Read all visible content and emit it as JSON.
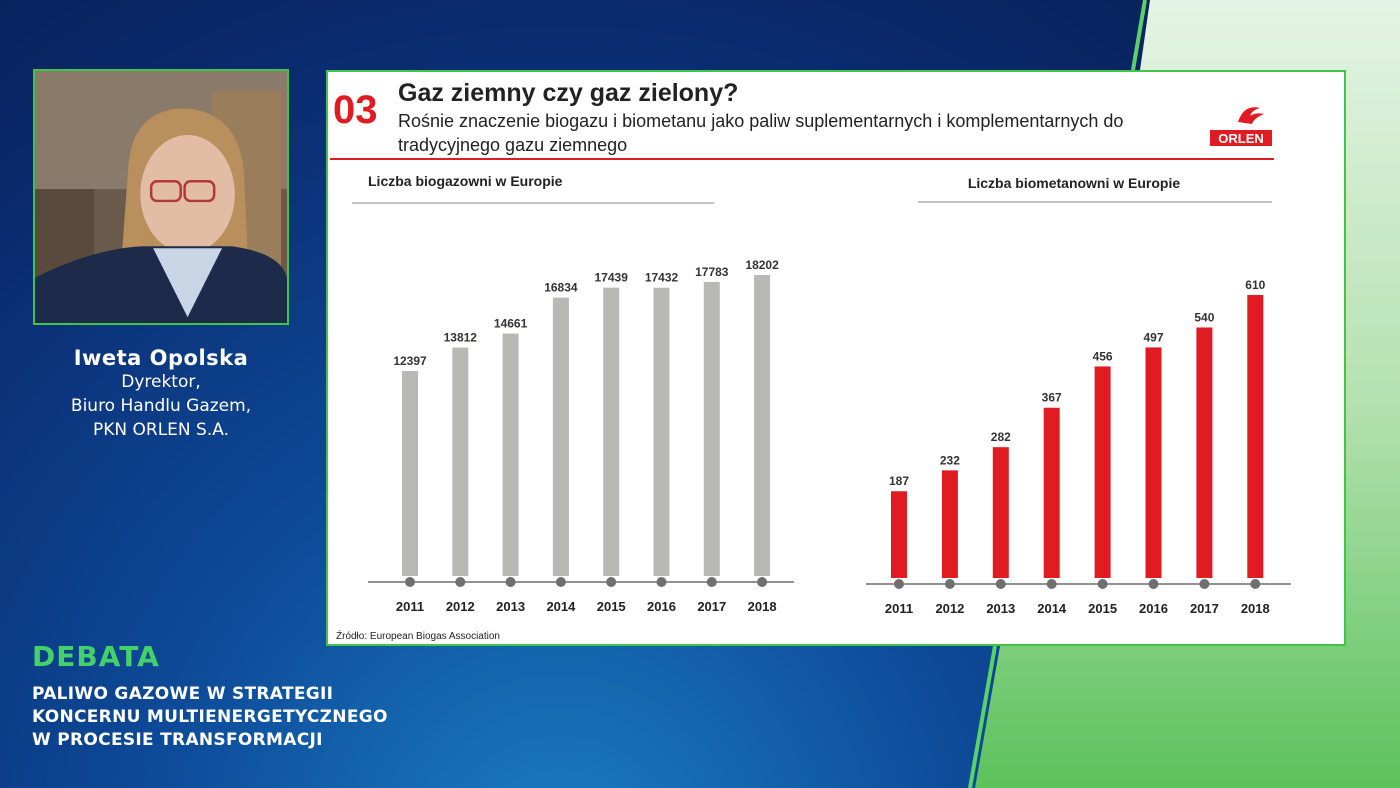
{
  "speaker": {
    "name": "Iweta Opolska",
    "line1": "Dyrektor,",
    "line2": "Biuro Handlu Gazem,",
    "line3": "PKN ORLEN S.A."
  },
  "debate": {
    "tag": "DEBATA",
    "line1": "PALIWO GAZOWE W STRATEGII",
    "line2": "KONCERNU MULTIENERGETYCZNEGO",
    "line3": "W PROCESIE TRANSFORMACJI"
  },
  "slide": {
    "number": "03",
    "title": "Gaz ziemny czy gaz zielony?",
    "subtitle": "Rośnie znaczenie biogazu i biometanu jako paliw suplementarnych i komplementarnych do tradycyjnego gazu ziemnego",
    "logo_text": "ORLEN",
    "source": "Źródło: European Biogas Association"
  },
  "colors": {
    "accent": "#e01b22",
    "gray_bar": "#b8b8b4",
    "frame": "#41c44a",
    "debate_green": "#44d16a"
  },
  "chart_data": [
    {
      "type": "bar",
      "title": "Liczba biogazowni w Europie",
      "categories": [
        "2011",
        "2012",
        "2013",
        "2014",
        "2015",
        "2016",
        "2017",
        "2018"
      ],
      "values": [
        12397,
        13812,
        14661,
        16834,
        17439,
        17432,
        17783,
        18202
      ],
      "ylim": [
        0,
        18202
      ],
      "color": "#b8b8b4",
      "labels": [
        "12397",
        "13812",
        "14661",
        "16834",
        "17439",
        "17432",
        "17783",
        "18202"
      ]
    },
    {
      "type": "bar",
      "title": "Liczba biometanowni w Europie",
      "categories": [
        "2011",
        "2012",
        "2013",
        "2014",
        "2015",
        "2016",
        "2017",
        "2018"
      ],
      "values": [
        187,
        232,
        282,
        367,
        456,
        497,
        540,
        610
      ],
      "ylim": [
        0,
        610
      ],
      "color": "#e01b22",
      "labels": [
        "187",
        "232",
        "282",
        "367",
        "456",
        "497",
        "540",
        "610"
      ]
    }
  ]
}
